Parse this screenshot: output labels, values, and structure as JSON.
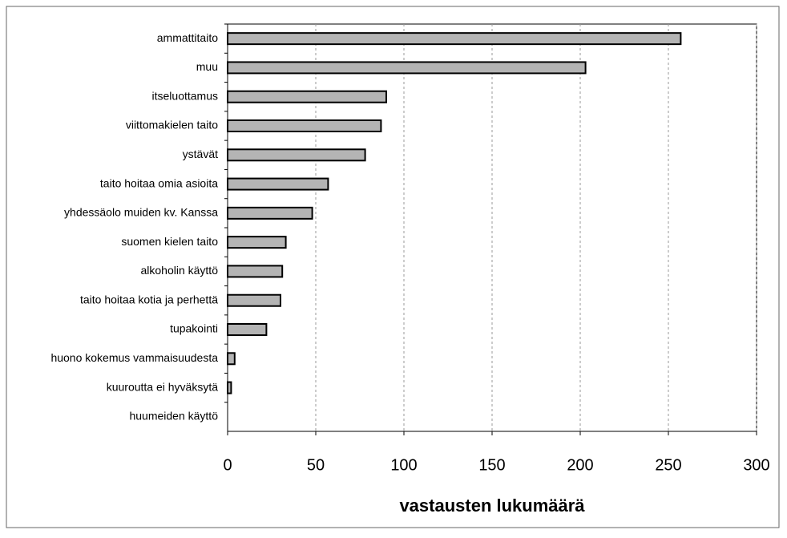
{
  "chart_data": {
    "type": "bar",
    "orientation": "horizontal",
    "x_label": "vastausten lukumäärä",
    "categories": [
      "ammattitaito",
      "muu",
      "itseluottamus",
      "viittomakielen taito",
      "ystävät",
      "taito hoitaa omia asioita",
      "yhdessäolo muiden kv. Kanssa",
      "suomen kielen taito",
      "alkoholin käyttö",
      "taito hoitaa kotia ja perhettä",
      "tupakointi",
      "huono kokemus vammaisuudesta",
      "kuuroutta ei hyväksytä",
      "huumeiden käyttö"
    ],
    "values": [
      257,
      203,
      90,
      87,
      78,
      57,
      48,
      33,
      31,
      30,
      22,
      4,
      2,
      0
    ],
    "color": "#b4b4b4",
    "xlim": [
      0,
      300
    ],
    "xticks": [
      0,
      50,
      100,
      150,
      200,
      250,
      300
    ],
    "grid": true
  }
}
